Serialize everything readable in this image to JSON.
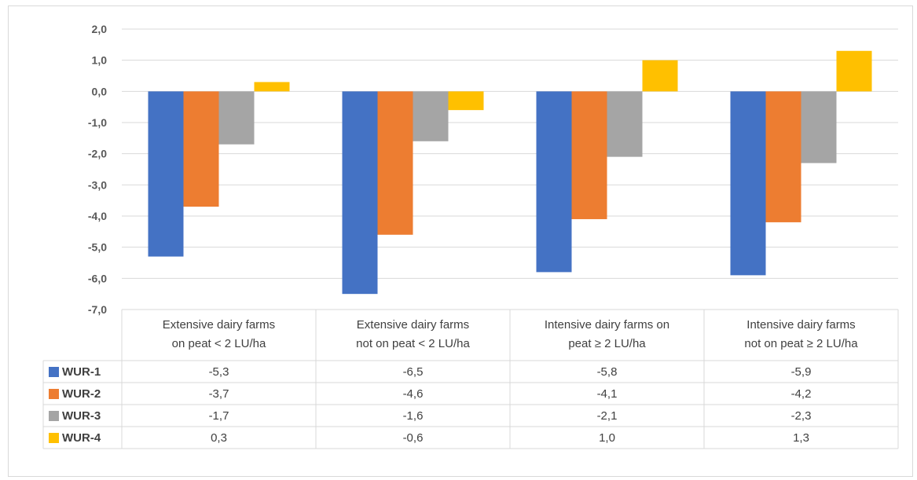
{
  "chart_data": {
    "type": "bar",
    "categories": [
      [
        "Extensive dairy farms",
        "on peat < 2 LU/ha"
      ],
      [
        "Extensive dairy farms",
        "not on peat < 2 LU/ha"
      ],
      [
        "Intensive dairy farms on",
        "peat ≥ 2 LU/ha"
      ],
      [
        "Intensive dairy farms",
        "not on peat ≥ 2 LU/ha"
      ]
    ],
    "series": [
      {
        "name": "WUR-1",
        "color": "#4472C4",
        "values": [
          -5.3,
          -6.5,
          -5.8,
          -5.9
        ],
        "labels": [
          "-5,3",
          "-6,5",
          "-5,8",
          "-5,9"
        ]
      },
      {
        "name": "WUR-2",
        "color": "#ED7D31",
        "values": [
          -3.7,
          -4.6,
          -4.1,
          -4.2
        ],
        "labels": [
          "-3,7",
          "-4,6",
          "-4,1",
          "-4,2"
        ]
      },
      {
        "name": "WUR-3",
        "color": "#A5A5A5",
        "values": [
          -1.7,
          -1.6,
          -2.1,
          -2.3
        ],
        "labels": [
          "-1,7",
          "-1,6",
          "-2,1",
          "-2,3"
        ]
      },
      {
        "name": "WUR-4",
        "color": "#FFC000",
        "values": [
          0.3,
          -0.6,
          1.0,
          1.3
        ],
        "labels": [
          "0,3",
          "-0,6",
          "1,0",
          "1,3"
        ]
      }
    ],
    "yticks": [
      "2,0",
      "1,0",
      "0,0",
      "-1,0",
      "-2,0",
      "-3,0",
      "-4,0",
      "-5,0",
      "-6,0",
      "-7,0"
    ],
    "ylim": [
      -7,
      2
    ],
    "title": "",
    "xlabel": "",
    "ylabel": "",
    "grid": true,
    "legend": "data-table"
  }
}
